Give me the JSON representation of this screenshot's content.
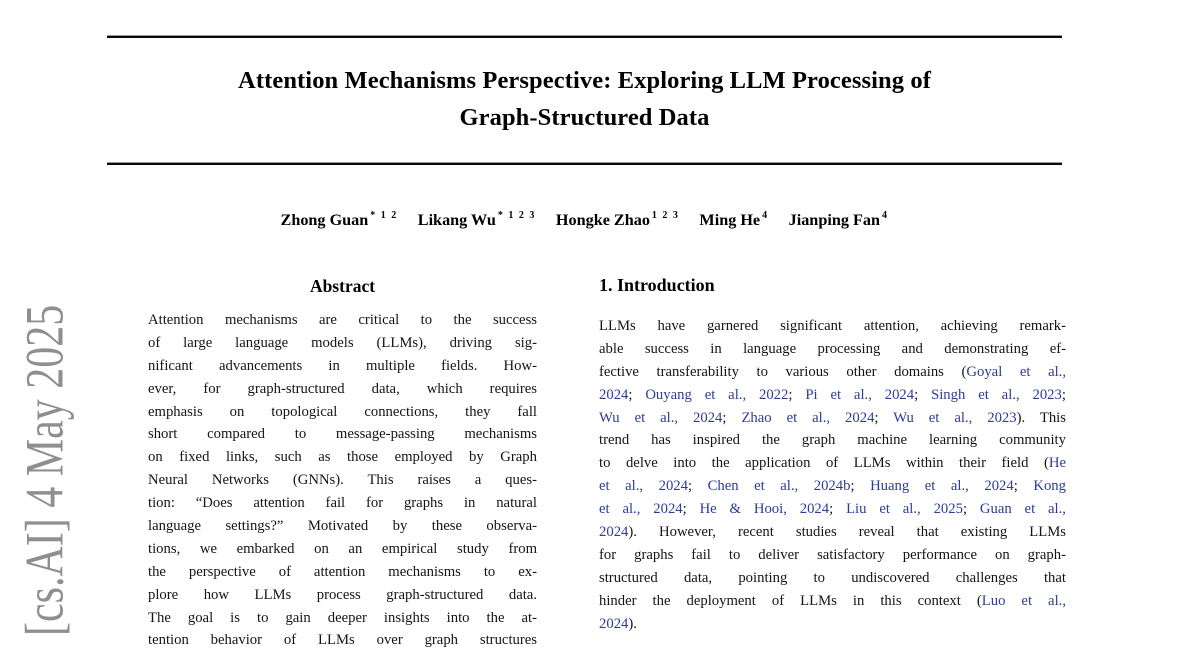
{
  "watermark": "[cs.AI]  4 May 2025",
  "title": {
    "line1": "Attention Mechanisms Perspective: Exploring LLM Processing of",
    "line2": "Graph-Structured Data"
  },
  "authors": [
    {
      "name": "Zhong Guan",
      "sup": "* 1 2"
    },
    {
      "name": "Likang Wu",
      "sup": "* 1 2 3"
    },
    {
      "name": "Hongke Zhao",
      "sup": "1 2 3"
    },
    {
      "name": "Ming He",
      "sup": "4"
    },
    {
      "name": "Jianping Fan",
      "sup": "4"
    }
  ],
  "abstract": {
    "heading": "Abstract",
    "lines": [
      "Attention mechanisms are critical to the success",
      "of large language models (LLMs), driving sig-",
      "nificant advancements in multiple fields.  How-",
      "ever, for graph-structured data, which requires",
      "emphasis on topological connections, they fall",
      "short compared to message-passing mechanisms",
      "on fixed links, such as those employed by Graph",
      "Neural Networks (GNNs).  This raises a ques-",
      "tion: “Does attention fail for graphs in natural",
      "language settings?” Motivated by these observa-",
      "tions, we embarked on an empirical study from",
      "the perspective of attention mechanisms to ex-",
      "plore how LLMs process graph-structured data.",
      "The goal is to gain deeper insights into the at-",
      "tention behavior of LLMs over graph structures"
    ]
  },
  "introduction": {
    "heading": "1. Introduction",
    "lines": [
      [
        {
          "t": "LLMs have garnered significant attention, achieving remark-",
          "c": false
        }
      ],
      [
        {
          "t": "able success in language processing and demonstrating ef-",
          "c": false
        }
      ],
      [
        {
          "t": "fective transferability to various other domains (",
          "c": false
        },
        {
          "t": "Goyal et al.,",
          "c": true
        }
      ],
      [
        {
          "t": "2024",
          "c": true
        },
        {
          "t": "; ",
          "c": false
        },
        {
          "t": "Ouyang et al., 2022",
          "c": true
        },
        {
          "t": "; ",
          "c": false
        },
        {
          "t": "Pi et al., 2024",
          "c": true
        },
        {
          "t": "; ",
          "c": false
        },
        {
          "t": "Singh et al., 2023",
          "c": true
        },
        {
          "t": ";",
          "c": false
        }
      ],
      [
        {
          "t": "Wu et al., 2024",
          "c": true
        },
        {
          "t": "; ",
          "c": false
        },
        {
          "t": "Zhao et al., 2024",
          "c": true
        },
        {
          "t": "; ",
          "c": false
        },
        {
          "t": "Wu et al., 2023",
          "c": true
        },
        {
          "t": ").  This",
          "c": false
        }
      ],
      [
        {
          "t": "trend has inspired the graph machine learning community",
          "c": false
        }
      ],
      [
        {
          "t": "to delve into the application of LLMs within their field (",
          "c": false
        },
        {
          "t": "He",
          "c": true
        }
      ],
      [
        {
          "t": "et al., 2024",
          "c": true
        },
        {
          "t": "; ",
          "c": false
        },
        {
          "t": "Chen et al., 2024b",
          "c": true
        },
        {
          "t": "; ",
          "c": false
        },
        {
          "t": "Huang et al., 2024",
          "c": true
        },
        {
          "t": "; ",
          "c": false
        },
        {
          "t": "Kong",
          "c": true
        }
      ],
      [
        {
          "t": "et al., 2024",
          "c": true
        },
        {
          "t": "; ",
          "c": false
        },
        {
          "t": "He & Hooi, 2024",
          "c": true
        },
        {
          "t": "; ",
          "c": false
        },
        {
          "t": "Liu et al., 2025",
          "c": true
        },
        {
          "t": "; ",
          "c": false
        },
        {
          "t": "Guan et al.,",
          "c": true
        }
      ],
      [
        {
          "t": "2024",
          "c": true
        },
        {
          "t": ").  However, recent studies reveal that existing LLMs",
          "c": false
        }
      ],
      [
        {
          "t": "for graphs fail to deliver satisfactory performance on graph-",
          "c": false
        }
      ],
      [
        {
          "t": "structured data, pointing to undiscovered challenges that",
          "c": false
        }
      ],
      [
        {
          "t": "hinder the deployment of LLMs in this context (",
          "c": false
        },
        {
          "t": "Luo et al.,",
          "c": true
        }
      ],
      [
        {
          "t": "2024",
          "c": true
        },
        {
          "t": ").",
          "c": false
        }
      ]
    ]
  },
  "colors": {
    "citation_link": "#2d3c96",
    "body_text": "#141414",
    "watermark_gray": "#8f8f8f",
    "rule_black": "#0a0a0a"
  }
}
